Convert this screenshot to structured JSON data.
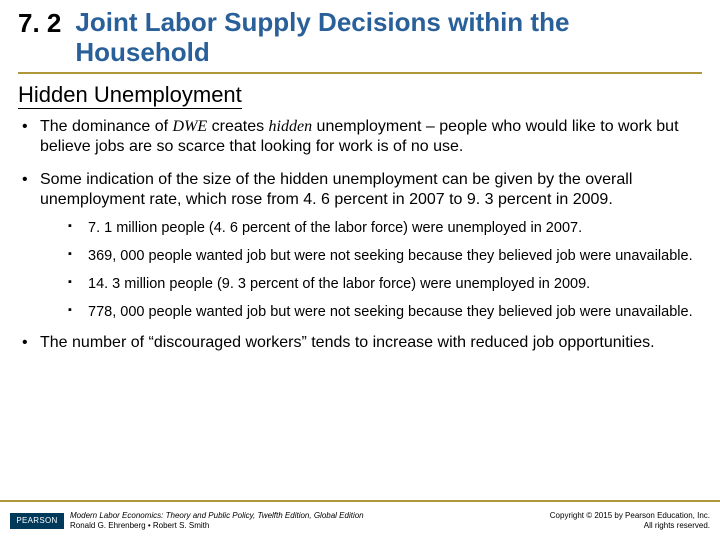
{
  "section_number": "7. 2",
  "section_title": "Joint  Labor Supply Decisions within the Household",
  "title_color": "#2a6099",
  "rule_color": "#b0983a",
  "subheading": "Hidden Unemployment",
  "bullets": [
    {
      "pre": "The dominance of ",
      "em1": "DWE",
      "mid": " creates ",
      "em2": "hidden",
      "post": " unemployment – people who would like to work but believe jobs are so scarce that looking for work is of no use."
    },
    {
      "text": "Some indication of the size of the hidden unemployment can be given by the overall unemployment rate, which rose from 4. 6 percent in 2007 to  9. 3 percent in 2009.",
      "sub": [
        "7. 1 million people (4. 6 percent of the labor force) were unemployed in 2007.",
        "369, 000 people wanted job but were not seeking because they believed job were unavailable.",
        "14. 3 million people (9. 3 percent of the labor force) were unemployed in 2009.",
        "778, 000 people wanted job but were not seeking because they believed job were unavailable."
      ]
    },
    {
      "text": "The number of “discouraged workers” tends to increase with reduced job opportunities."
    }
  ],
  "footer": {
    "logo": "PEARSON",
    "book_line1": "Modern Labor Economics: Theory and Public Policy, Twelfth Edition, Global Edition",
    "book_line2": "Ronald G. Ehrenberg • Robert S. Smith",
    "copy_line1": "Copyright © 2015 by Pearson Education, Inc.",
    "copy_line2": "All rights reserved."
  }
}
